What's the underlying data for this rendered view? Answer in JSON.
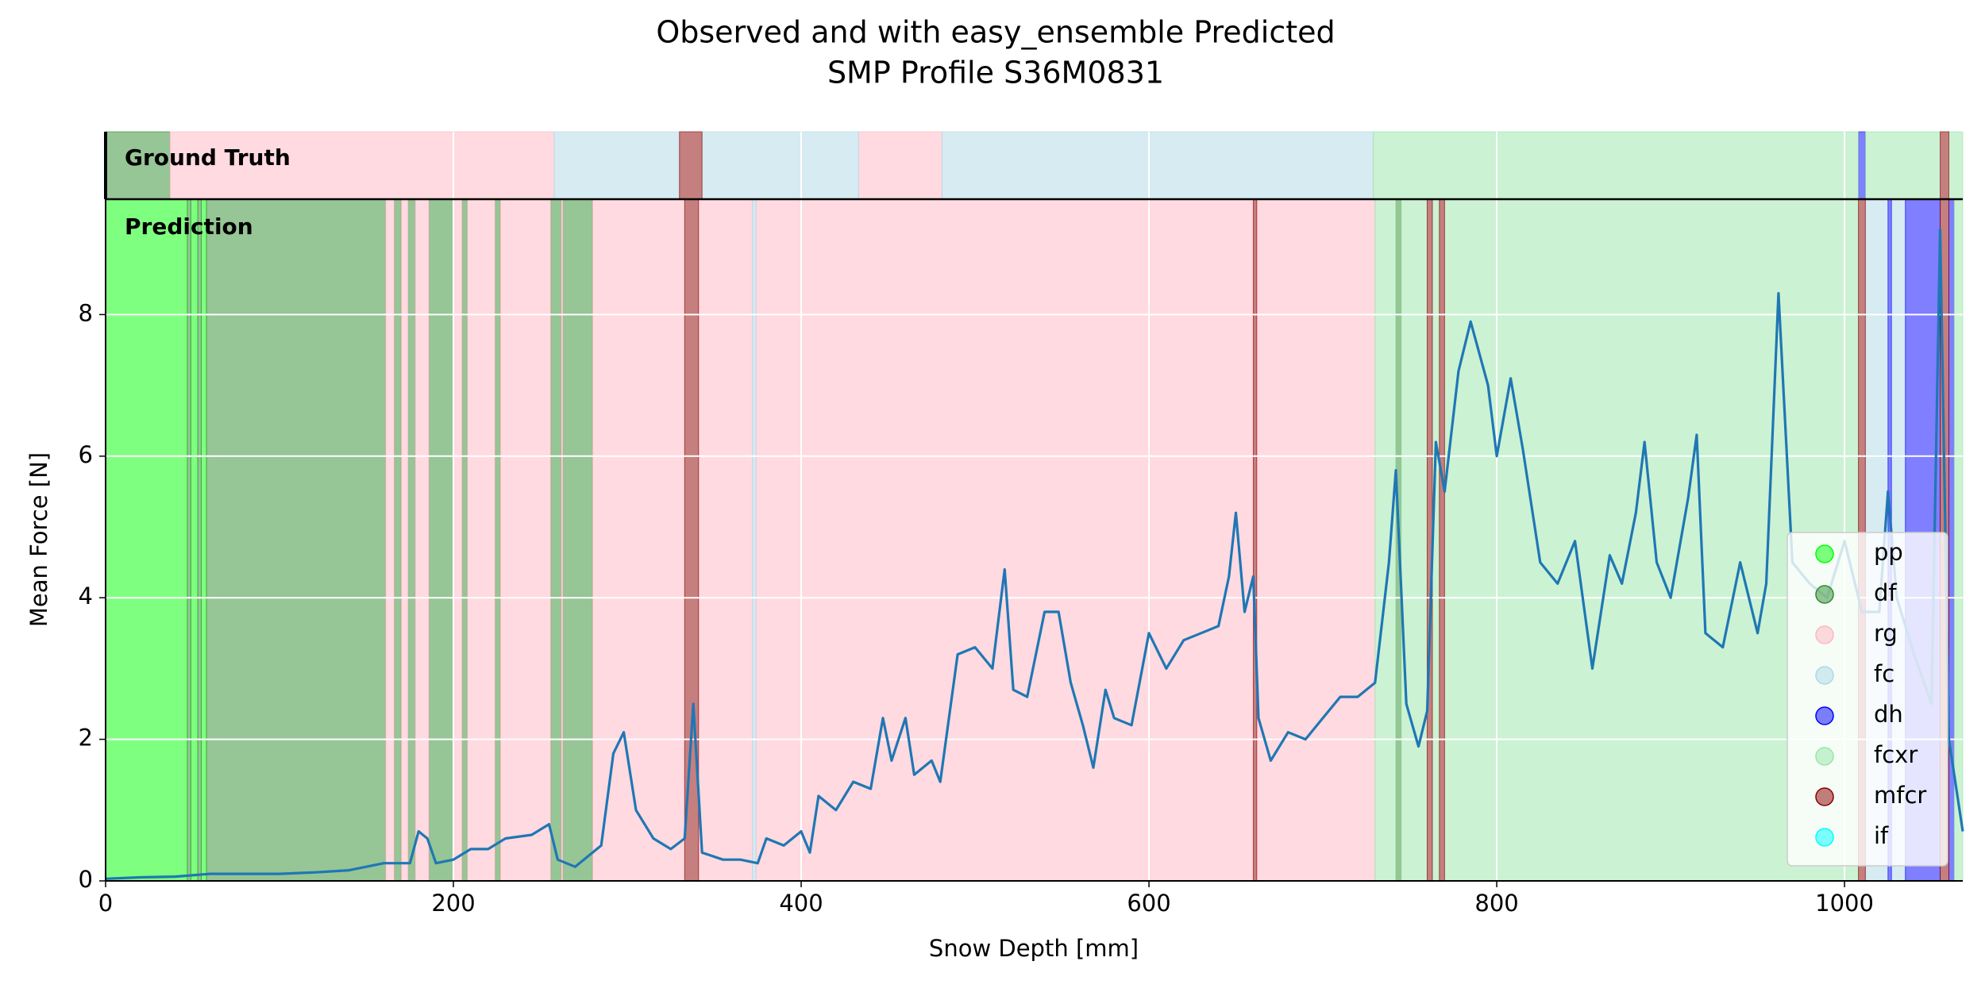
{
  "chart_data": {
    "type": "line",
    "title": "Observed and with easy_ensemble Predicted",
    "subtitle": "SMP Profile S36M0831",
    "x_label": "Snow Depth [mm]",
    "y_label": "Mean Force [N]",
    "panel_top_label": "Ground Truth",
    "panel_main_label": "Prediction",
    "xlim": [
      0,
      1068
    ],
    "ylim": [
      0,
      9.63
    ],
    "xticks": [
      0,
      200,
      400,
      600,
      800,
      1000
    ],
    "yticks": [
      0,
      2,
      4,
      6,
      8
    ],
    "grid": true,
    "legend": "lower right",
    "line_color": "#1f77b4",
    "x": [
      0,
      20,
      40,
      60,
      80,
      100,
      120,
      140,
      160,
      175,
      180,
      185,
      190,
      200,
      210,
      220,
      230,
      245,
      255,
      260,
      270,
      285,
      292,
      298,
      305,
      315,
      325,
      333,
      338,
      343,
      355,
      365,
      375,
      380,
      390,
      400,
      405,
      410,
      420,
      430,
      440,
      447,
      452,
      460,
      465,
      475,
      480,
      490,
      500,
      510,
      517,
      522,
      530,
      540,
      548,
      555,
      562,
      568,
      575,
      580,
      590,
      600,
      610,
      620,
      630,
      640,
      646,
      650,
      655,
      660,
      663,
      670,
      680,
      690,
      700,
      710,
      720,
      730,
      738,
      742,
      748,
      755,
      760,
      765,
      770,
      778,
      785,
      795,
      800,
      808,
      815,
      825,
      835,
      845,
      855,
      865,
      872,
      880,
      885,
      892,
      900,
      910,
      915,
      920,
      930,
      940,
      950,
      955,
      962,
      970,
      980,
      990,
      1000,
      1010,
      1020,
      1025,
      1030,
      1040,
      1050,
      1055,
      1060,
      1068
    ],
    "values": [
      0.03,
      0.05,
      0.06,
      0.1,
      0.1,
      0.1,
      0.12,
      0.15,
      0.25,
      0.25,
      0.7,
      0.6,
      0.25,
      0.3,
      0.45,
      0.45,
      0.6,
      0.65,
      0.8,
      0.3,
      0.2,
      0.5,
      1.8,
      2.1,
      1.0,
      0.6,
      0.45,
      0.6,
      2.5,
      0.4,
      0.3,
      0.3,
      0.25,
      0.6,
      0.5,
      0.7,
      0.4,
      1.2,
      1.0,
      1.4,
      1.3,
      2.3,
      1.7,
      2.3,
      1.5,
      1.7,
      1.4,
      3.2,
      3.3,
      3.0,
      4.4,
      2.7,
      2.6,
      3.8,
      3.8,
      2.8,
      2.2,
      1.6,
      2.7,
      2.3,
      2.2,
      3.5,
      3.0,
      3.4,
      3.5,
      3.6,
      4.3,
      5.2,
      3.8,
      4.3,
      2.3,
      1.7,
      2.1,
      2.0,
      2.3,
      2.6,
      2.6,
      2.8,
      4.5,
      5.8,
      2.5,
      1.9,
      2.4,
      6.2,
      5.5,
      7.2,
      7.9,
      7.0,
      6.0,
      7.1,
      6.1,
      4.5,
      4.2,
      4.8,
      3.0,
      4.6,
      4.2,
      5.2,
      6.2,
      4.5,
      4.0,
      5.4,
      6.3,
      3.5,
      3.3,
      4.5,
      3.5,
      4.2,
      8.3,
      4.5,
      4.2,
      4.0,
      4.8,
      3.8,
      3.8,
      5.5,
      4.0,
      3.2,
      2.5,
      9.2,
      2.0,
      0.7
    ],
    "classes": [
      {
        "name": "pp",
        "color": "#00ff00",
        "ground_truth": [],
        "prediction": [
          [
            0,
            47
          ],
          [
            49,
            53
          ],
          [
            55,
            58
          ]
        ]
      },
      {
        "name": "df",
        "color": "#2e8b2e",
        "ground_truth": [
          [
            0,
            37
          ]
        ],
        "prediction": [
          [
            47,
            49
          ],
          [
            53,
            55
          ],
          [
            58,
            161
          ],
          [
            166,
            170
          ],
          [
            174,
            178
          ],
          [
            186,
            200
          ],
          [
            205,
            208
          ],
          [
            224,
            227
          ],
          [
            256,
            262
          ],
          [
            263,
            280
          ],
          [
            742,
            745
          ]
        ]
      },
      {
        "name": "rg",
        "color": "#ffb6c1",
        "ground_truth": [
          [
            37,
            258
          ],
          [
            433,
            481
          ]
        ],
        "prediction": [
          [
            161,
            166
          ],
          [
            170,
            174
          ],
          [
            178,
            186
          ],
          [
            200,
            205
          ],
          [
            208,
            224
          ],
          [
            227,
            256
          ],
          [
            262,
            263
          ],
          [
            280,
            333
          ],
          [
            341,
            372
          ],
          [
            374,
            660
          ],
          [
            662,
            730
          ]
        ]
      },
      {
        "name": "fc",
        "color": "#add8e6",
        "ground_truth": [
          [
            258,
            330
          ],
          [
            343,
            433
          ],
          [
            481,
            729
          ]
        ],
        "prediction": [
          [
            372,
            374
          ],
          [
            1012,
            1025
          ],
          [
            1027,
            1035
          ]
        ]
      },
      {
        "name": "dh",
        "color": "#0000ff",
        "ground_truth": [
          [
            1008,
            1012
          ]
        ],
        "prediction": [
          [
            1025,
            1027
          ],
          [
            1035,
            1055
          ],
          [
            1060,
            1063
          ]
        ]
      },
      {
        "name": "fcxr",
        "color": "#98e6a8",
        "ground_truth": [
          [
            729,
            1008
          ],
          [
            1012,
            1055
          ],
          [
            1060,
            1068
          ]
        ],
        "prediction": [
          [
            730,
            742
          ],
          [
            745,
            760
          ],
          [
            763,
            767
          ],
          [
            770,
            1008
          ],
          [
            1063,
            1068
          ]
        ]
      },
      {
        "name": "mfcr",
        "color": "#8b0000",
        "ground_truth": [
          [
            330,
            343
          ],
          [
            1055,
            1060
          ]
        ],
        "prediction": [
          [
            333,
            341
          ],
          [
            660,
            662
          ],
          [
            760,
            763
          ],
          [
            767,
            770
          ],
          [
            1008,
            1012
          ],
          [
            1055,
            1060
          ]
        ]
      },
      {
        "name": "if",
        "color": "#00ffff",
        "ground_truth": [],
        "prediction": []
      }
    ]
  }
}
